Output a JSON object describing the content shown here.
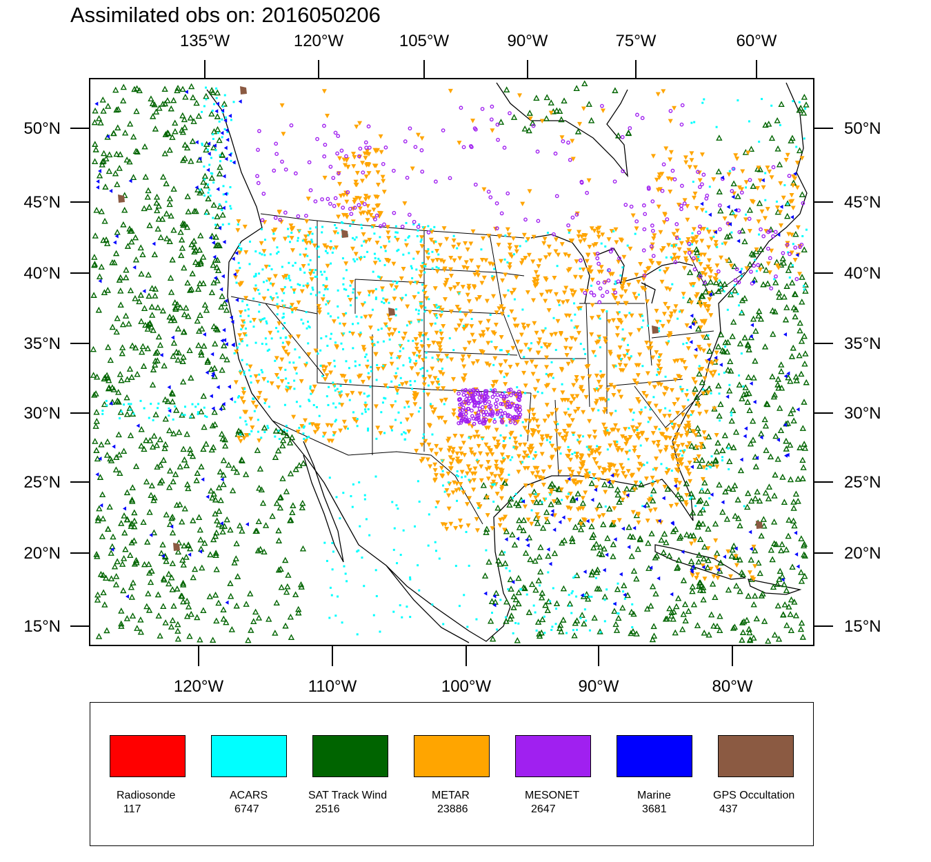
{
  "title": "Assimilated obs on: 2016050206",
  "map": {
    "top_axis_labels": [
      "135°W",
      "120°W",
      "105°W",
      "90°W",
      "75°W",
      "60°W"
    ],
    "bottom_axis_labels": [
      "120°W",
      "110°W",
      "100°W",
      "90°W",
      "80°W"
    ],
    "left_axis_labels": [
      "50°N",
      "45°N",
      "40°N",
      "35°N",
      "30°N",
      "25°N",
      "20°N",
      "15°N"
    ],
    "right_axis_labels": [
      "50°N",
      "45°N",
      "40°N",
      "35°N",
      "30°N",
      "25°N",
      "20°N",
      "15°N"
    ]
  },
  "legend": {
    "items": [
      {
        "label": "Radiosonde",
        "count": "117",
        "color": "#ff0000"
      },
      {
        "label": "ACARS",
        "count": "6747",
        "color": "#00ffff"
      },
      {
        "label": "SAT Track Wind",
        "count": "2516",
        "color": "#006400"
      },
      {
        "label": "METAR",
        "count": "23886",
        "color": "#ffa500"
      },
      {
        "label": "MESONET",
        "count": "2647",
        "color": "#a020f0"
      },
      {
        "label": "Marine",
        "count": "3681",
        "color": "#0000ff"
      },
      {
        "label": "GPS Occultation",
        "count": "437",
        "color": "#8b5a42"
      }
    ]
  },
  "colors": {
    "radiosonde": "#ff0000",
    "acars": "#00ffff",
    "sat_track_wind": "#006400",
    "metar": "#ffa500",
    "mesonet": "#a020f0",
    "marine": "#0000ff",
    "gps_occultation": "#8b5a42"
  }
}
